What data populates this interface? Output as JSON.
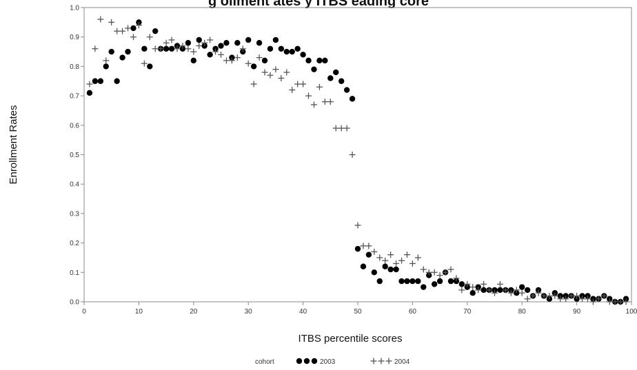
{
  "chart_data": {
    "type": "scatter",
    "title": "g  ollment  ates   y  ITBS  eading   core",
    "xlabel": "ITBS percentile scores",
    "ylabel": "Enrollment Rates",
    "xlim": [
      0,
      100
    ],
    "ylim": [
      0.0,
      1.0
    ],
    "x_ticks": [
      0,
      10,
      20,
      30,
      40,
      50,
      60,
      70,
      80,
      90,
      100
    ],
    "x_tick_labels": [
      "0",
      "10",
      "20",
      "30",
      "40",
      "50",
      "60",
      "70",
      "80",
      "90",
      "100"
    ],
    "y_ticks": [
      0.0,
      0.1,
      0.2,
      0.3,
      0.4,
      0.5,
      0.6,
      0.7,
      0.8,
      0.9,
      1.0
    ],
    "y_tick_labels": [
      "0.0",
      "0.1",
      "0.2",
      "0.3",
      "0.4",
      "0.5",
      "0.6",
      "0.7",
      "0.8",
      "0.9",
      "1.0"
    ],
    "grid": false,
    "legend": {
      "title": "cohort",
      "placement": "bottom"
    },
    "series": [
      {
        "name": "2003",
        "marker": "filled-circle",
        "color": "#000000",
        "x": [
          1,
          2,
          3,
          4,
          5,
          6,
          7,
          8,
          9,
          10,
          11,
          12,
          13,
          14,
          15,
          16,
          17,
          18,
          19,
          20,
          21,
          22,
          23,
          24,
          25,
          26,
          27,
          28,
          29,
          30,
          31,
          32,
          33,
          34,
          35,
          36,
          37,
          38,
          39,
          40,
          41,
          42,
          43,
          44,
          45,
          46,
          47,
          48,
          49,
          50,
          51,
          52,
          53,
          54,
          55,
          56,
          57,
          58,
          59,
          60,
          61,
          62,
          63,
          64,
          65,
          66,
          67,
          68,
          69,
          70,
          71,
          72,
          73,
          74,
          75,
          76,
          77,
          78,
          79,
          80,
          81,
          82,
          83,
          84,
          85,
          86,
          87,
          88,
          89,
          90,
          91,
          92,
          93,
          94,
          95,
          96,
          97,
          98,
          99
        ],
        "y": [
          0.71,
          0.75,
          0.75,
          0.8,
          0.85,
          0.75,
          0.83,
          0.85,
          0.93,
          0.95,
          0.86,
          0.8,
          0.92,
          0.86,
          0.86,
          0.86,
          0.87,
          0.86,
          0.88,
          0.82,
          0.89,
          0.87,
          0.84,
          0.86,
          0.87,
          0.88,
          0.83,
          0.88,
          0.85,
          0.89,
          0.8,
          0.88,
          0.82,
          0.86,
          0.89,
          0.86,
          0.85,
          0.85,
          0.86,
          0.84,
          0.82,
          0.79,
          0.82,
          0.82,
          0.76,
          0.78,
          0.75,
          0.72,
          0.69,
          0.18,
          0.12,
          0.16,
          0.1,
          0.07,
          0.12,
          0.11,
          0.11,
          0.07,
          0.07,
          0.07,
          0.07,
          0.05,
          0.09,
          0.06,
          0.07,
          0.1,
          0.07,
          0.07,
          0.06,
          0.05,
          0.03,
          0.05,
          0.04,
          0.04,
          0.04,
          0.04,
          0.04,
          0.04,
          0.03,
          0.05,
          0.04,
          0.02,
          0.04,
          0.02,
          0.01,
          0.03,
          0.02,
          0.02,
          0.02,
          0.01,
          0.02,
          0.02,
          0.01,
          0.01,
          0.02,
          0.01,
          0.0,
          0.0,
          0.01
        ]
      },
      {
        "name": "2004",
        "marker": "plus",
        "color": "#555555",
        "x": [
          1,
          2,
          3,
          4,
          5,
          6,
          7,
          8,
          9,
          10,
          11,
          12,
          13,
          14,
          15,
          16,
          17,
          18,
          19,
          20,
          21,
          22,
          23,
          24,
          25,
          26,
          27,
          28,
          29,
          30,
          31,
          32,
          33,
          34,
          35,
          36,
          37,
          38,
          39,
          40,
          41,
          42,
          43,
          44,
          45,
          46,
          47,
          48,
          49,
          50,
          51,
          52,
          53,
          54,
          55,
          56,
          57,
          58,
          59,
          60,
          61,
          62,
          63,
          64,
          65,
          66,
          67,
          68,
          69,
          70,
          71,
          72,
          73,
          74,
          75,
          76,
          77,
          78,
          79,
          80,
          81,
          82,
          83,
          84,
          85,
          86,
          87,
          88,
          89,
          90,
          91,
          92,
          93,
          94,
          95,
          96,
          97,
          98,
          99
        ],
        "y": [
          0.74,
          0.86,
          0.96,
          0.82,
          0.95,
          0.92,
          0.92,
          0.93,
          0.9,
          0.94,
          0.81,
          0.9,
          0.86,
          0.86,
          0.88,
          0.89,
          0.86,
          0.87,
          0.86,
          0.85,
          0.87,
          0.88,
          0.89,
          0.85,
          0.84,
          0.82,
          0.82,
          0.83,
          0.86,
          0.81,
          0.74,
          0.83,
          0.78,
          0.77,
          0.79,
          0.76,
          0.78,
          0.72,
          0.74,
          0.74,
          0.7,
          0.67,
          0.73,
          0.68,
          0.68,
          0.59,
          0.59,
          0.59,
          0.5,
          0.26,
          0.19,
          0.19,
          0.17,
          0.15,
          0.14,
          0.16,
          0.13,
          0.14,
          0.16,
          0.13,
          0.15,
          0.11,
          0.1,
          0.1,
          0.09,
          0.1,
          0.11,
          0.08,
          0.04,
          0.06,
          0.05,
          0.04,
          0.06,
          0.04,
          0.03,
          0.06,
          0.04,
          0.03,
          0.04,
          0.03,
          0.01,
          0.02,
          0.03,
          0.02,
          0.02,
          0.02,
          0.01,
          0.01,
          0.02,
          0.02,
          0.01,
          0.01,
          0.0,
          0.01,
          0.02,
          0.0,
          0.0,
          0.0,
          0.0
        ]
      }
    ]
  }
}
